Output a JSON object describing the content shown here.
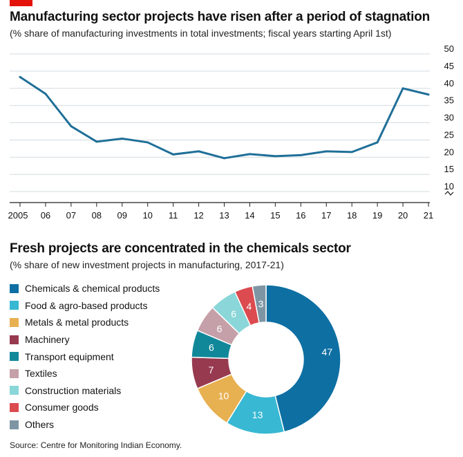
{
  "chart_data": [
    {
      "type": "line",
      "title": "Manufacturing sector projects have risen after a period of stagnation",
      "subtitle": "(% share of manufacturing investments in total investments; fiscal years starting April 1st)",
      "x": [
        "2005",
        "06",
        "07",
        "08",
        "09",
        "10",
        "11",
        "12",
        "13",
        "14",
        "15",
        "16",
        "17",
        "18",
        "19",
        "20",
        "21"
      ],
      "values": [
        43.3,
        38.4,
        29.0,
        24.5,
        25.4,
        24.3,
        20.8,
        21.7,
        19.7,
        20.9,
        20.3,
        20.6,
        21.7,
        21.5,
        24.3,
        40.0,
        38.2
      ],
      "ylim": [
        5,
        50
      ],
      "yticks": [
        "50",
        "45",
        "40",
        "35",
        "30",
        "25",
        "20",
        "15",
        "10"
      ],
      "y_axis_side": "right",
      "axis_break": true,
      "grid": true,
      "line_color": "#1f6f98"
    },
    {
      "type": "pie",
      "variant": "donut",
      "title": "Fresh projects are concentrated in the chemicals sector",
      "subtitle": "(% share of new investment projects in manufacturing, 2017-21)",
      "slices": [
        {
          "label": "Chemicals & chemical products",
          "value": 47,
          "color": "#0e6fa3"
        },
        {
          "label": "Food & agro-based products",
          "value": 13,
          "color": "#38b8d2"
        },
        {
          "label": "Metals & metal products",
          "value": 10,
          "color": "#e7b051"
        },
        {
          "label": "Machinery",
          "value": 7,
          "color": "#973a50"
        },
        {
          "label": "Transport equipment",
          "value": 6,
          "color": "#11889a"
        },
        {
          "label": "Textiles",
          "value": 6,
          "color": "#c5a0a8"
        },
        {
          "label": "Construction materials",
          "value": 6,
          "color": "#8ad6d8"
        },
        {
          "label": "Consumer goods",
          "value": 4,
          "color": "#db4b4f"
        },
        {
          "label": "Others",
          "value": 3,
          "color": "#7e96a4"
        }
      ],
      "legend_placement": "left"
    }
  ],
  "source": "Source: Centre for Monitoring Indian Economy."
}
